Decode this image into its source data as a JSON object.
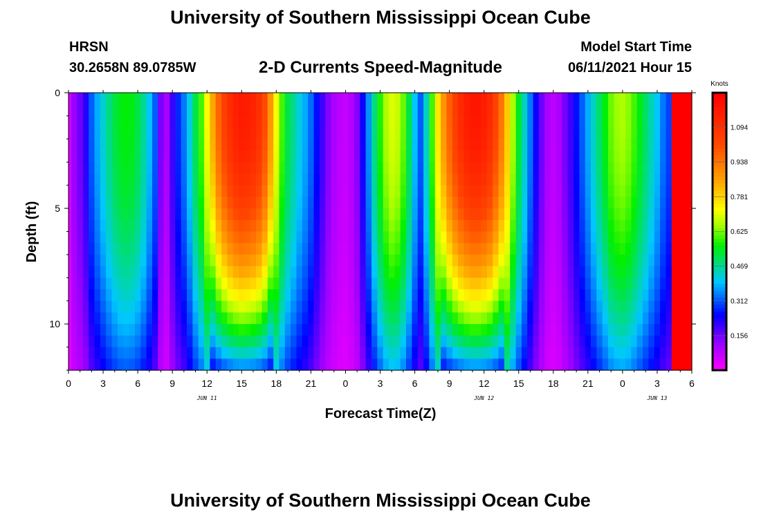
{
  "title": "University of Southern Mississippi Ocean Cube",
  "footer_title": "University of Southern Mississippi Ocean Cube",
  "station": {
    "name": "HRSN",
    "coords": "30.2658N  89.0785W"
  },
  "model": {
    "label": "Model Start Time",
    "start": "06/11/2021 Hour 15"
  },
  "chart_data": {
    "type": "heatmap",
    "title": "2-D Currents Speed-Magnitude",
    "xlabel": "Forecast Time(Z)",
    "ylabel": "Depth (ft)",
    "x_range_hours": [
      0,
      54
    ],
    "y_range_ft": [
      0,
      12
    ],
    "y_reversed": true,
    "x_tick_hours": [
      0,
      3,
      6,
      9,
      12,
      15,
      18,
      21,
      24,
      27,
      30,
      33,
      36,
      39,
      42,
      45,
      48,
      51,
      54
    ],
    "x_tick_labels": [
      "0",
      "3",
      "6",
      "9",
      "12",
      "15",
      "18",
      "21",
      "0",
      "3",
      "6",
      "9",
      "12",
      "15",
      "18",
      "21",
      "0",
      "3",
      "6"
    ],
    "y_tick_values": [
      0,
      5,
      10
    ],
    "y_tick_labels": [
      "0",
      "5",
      "10"
    ],
    "date_labels": [
      {
        "hour": 12,
        "text": "JUN 11"
      },
      {
        "hour": 36,
        "text": "JUN 12"
      },
      {
        "hour": 51,
        "text": "JUN 13"
      }
    ],
    "colorbar": {
      "unit": "Knots",
      "min": 0.0,
      "max": 1.25,
      "ticks": [
        0.156,
        0.312,
        0.469,
        0.625,
        0.781,
        0.938,
        1.094
      ],
      "tick_labels": [
        "0.156",
        "0.312",
        "0.469",
        "0.625",
        "0.781",
        "0.938",
        "1.094"
      ]
    },
    "speed_profile": {
      "hours": [
        0,
        0.5,
        1,
        1.5,
        2,
        2.5,
        3,
        3.5,
        4,
        4.5,
        5,
        5.5,
        6,
        6.5,
        7,
        7.5,
        8,
        8.5,
        9,
        9.5,
        10,
        10.5,
        11,
        11.5,
        12,
        12.5,
        13,
        13.5,
        14,
        14.5,
        15,
        15.5,
        16,
        16.5,
        17,
        17.5,
        18,
        18.5,
        19,
        19.5,
        20,
        20.5,
        21,
        21.5,
        22,
        22.5,
        23,
        23.5,
        24,
        24.5,
        25,
        25.5,
        26,
        26.5,
        27,
        27.5,
        28,
        28.5,
        29,
        29.5,
        30,
        30.5,
        31,
        31.5,
        32,
        32.5,
        33,
        33.5,
        34,
        34.5,
        35,
        35.5,
        36,
        36.5,
        37,
        37.5,
        38,
        38.5,
        39,
        39.5,
        40,
        40.5,
        41,
        41.5,
        42,
        42.5,
        43,
        43.5,
        44,
        44.5,
        45,
        45.5,
        46,
        46.5,
        47,
        47.5,
        48,
        48.5,
        49,
        49.5,
        50,
        50.5,
        51,
        51.5,
        52,
        52.5,
        53,
        53.5,
        54
      ],
      "surface_knots": [
        0.05,
        0.12,
        0.16,
        0.22,
        0.32,
        0.38,
        0.43,
        0.48,
        0.52,
        0.55,
        0.56,
        0.55,
        0.52,
        0.47,
        0.4,
        0.32,
        0.15,
        0.1,
        0.2,
        0.28,
        0.34,
        0.42,
        0.52,
        0.6,
        0.72,
        0.85,
        0.97,
        1.05,
        1.11,
        1.15,
        1.17,
        1.16,
        1.14,
        1.1,
        1.02,
        0.88,
        0.72,
        0.6,
        0.52,
        0.47,
        0.42,
        0.38,
        0.33,
        0.26,
        0.2,
        0.14,
        0.1,
        0.08,
        0.07,
        0.09,
        0.14,
        0.24,
        0.36,
        0.48,
        0.58,
        0.66,
        0.7,
        0.68,
        0.62,
        0.52,
        0.4,
        0.32,
        0.44,
        0.6,
        0.76,
        0.88,
        0.98,
        1.06,
        1.12,
        1.16,
        1.18,
        1.18,
        1.16,
        1.12,
        1.04,
        0.94,
        0.8,
        0.66,
        0.54,
        0.44,
        0.34,
        0.24,
        0.16,
        0.1,
        0.08,
        0.1,
        0.15,
        0.2,
        0.26,
        0.32,
        0.38,
        0.44,
        0.5,
        0.56,
        0.62,
        0.65,
        0.66,
        0.64,
        0.6,
        0.55,
        0.5,
        0.45,
        0.4,
        0.34,
        0.3
      ]
    }
  }
}
